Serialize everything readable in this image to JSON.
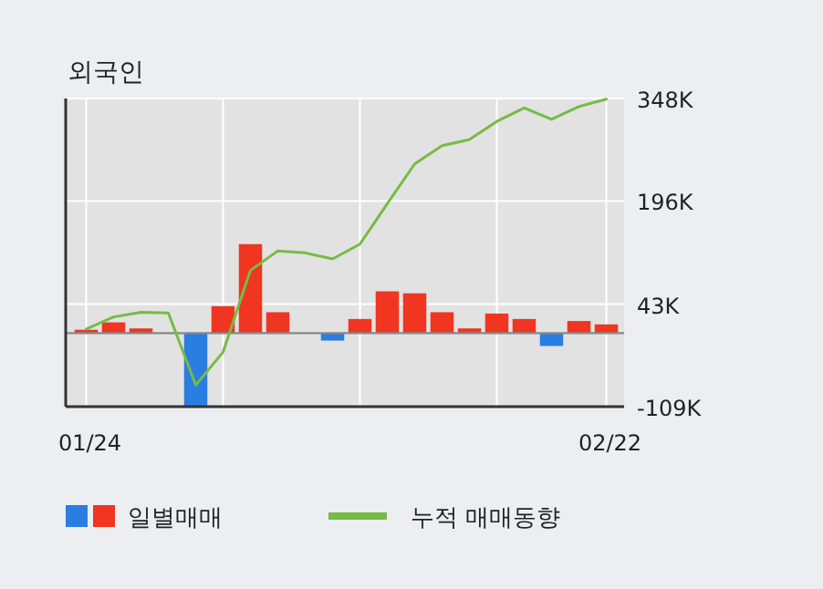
{
  "chart_data": {
    "type": "bar",
    "title": "외국인",
    "categories": [
      "01/24",
      null,
      null,
      null,
      null,
      null,
      null,
      null,
      null,
      null,
      null,
      null,
      null,
      null,
      null,
      null,
      null,
      null,
      null,
      "02/22"
    ],
    "series": [
      {
        "name": "일별매매",
        "colors": [
          "#f03520",
          "#f03520",
          "#f03520",
          "#f03520",
          "#2a7de1",
          "#f03520",
          "#f03520",
          "#f03520",
          "#f03520",
          "#2a7de1",
          "#f03520",
          "#f03520",
          "#f03520",
          "#f03520",
          "#f03520",
          "#f03520",
          "#f03520",
          "#2a7de1",
          "#f03520",
          "#f03520"
        ],
        "values": [
          5,
          16,
          7,
          0,
          -108,
          40,
          132,
          31,
          0,
          -11,
          21,
          62,
          59,
          31,
          7,
          29,
          21,
          -19,
          18,
          13
        ]
      },
      {
        "name": "누적 매매동향",
        "type": "line",
        "color": "#77bb44",
        "values": [
          6,
          24,
          31,
          30,
          -77,
          -28,
          93,
          122,
          119,
          110,
          132,
          192,
          251,
          278,
          287,
          314,
          334,
          317,
          336,
          347
        ]
      }
    ],
    "ylim": [
      -109,
      348
    ],
    "yticks": [
      {
        "value": -109,
        "label": "-109K"
      },
      {
        "value": 43,
        "label": "43K"
      },
      {
        "value": 196,
        "label": "196K"
      },
      {
        "value": 348,
        "label": "348K"
      }
    ],
    "ref_lines": [
      {
        "axis": "y",
        "value": 0,
        "color": "#888888"
      }
    ],
    "grid": true,
    "legend": "bottom"
  }
}
